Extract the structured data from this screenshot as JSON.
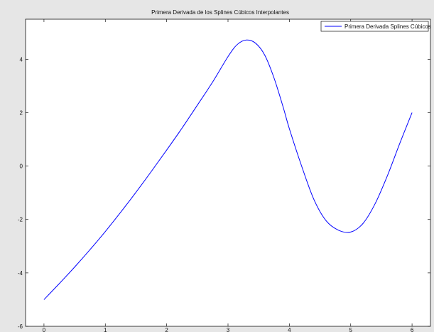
{
  "chart_data": {
    "type": "line",
    "title": "Primera Derivada de los Splines Cúbicos Interpolantes",
    "xlabel": "",
    "ylabel": "",
    "xlim": [
      -0.3,
      6.3
    ],
    "ylim": [
      -6,
      5.5
    ],
    "xticks": [
      0,
      1,
      2,
      3,
      4,
      5,
      6
    ],
    "yticks": [
      -6,
      -4,
      -2,
      0,
      2,
      4
    ],
    "grid": false,
    "legend_position": "top-right",
    "series": [
      {
        "name": "Primera Derivada Splines Cúbicos",
        "color": "#0000ff",
        "x": [
          0,
          0.25,
          0.5,
          0.75,
          1,
          1.25,
          1.5,
          1.75,
          2,
          2.25,
          2.5,
          2.75,
          3,
          3.15,
          3.3,
          3.45,
          3.6,
          3.75,
          3.9,
          4,
          4.2,
          4.4,
          4.6,
          4.8,
          5,
          5.2,
          5.4,
          5.6,
          5.8,
          6
        ],
        "y": [
          -5.0,
          -4.4,
          -3.78,
          -3.13,
          -2.45,
          -1.73,
          -0.98,
          -0.2,
          0.6,
          1.42,
          2.28,
          3.15,
          4.1,
          4.55,
          4.72,
          4.6,
          4.15,
          3.3,
          2.2,
          1.4,
          0.0,
          -1.25,
          -2.05,
          -2.4,
          -2.47,
          -2.15,
          -1.4,
          -0.35,
          0.85,
          2.0
        ]
      }
    ]
  }
}
